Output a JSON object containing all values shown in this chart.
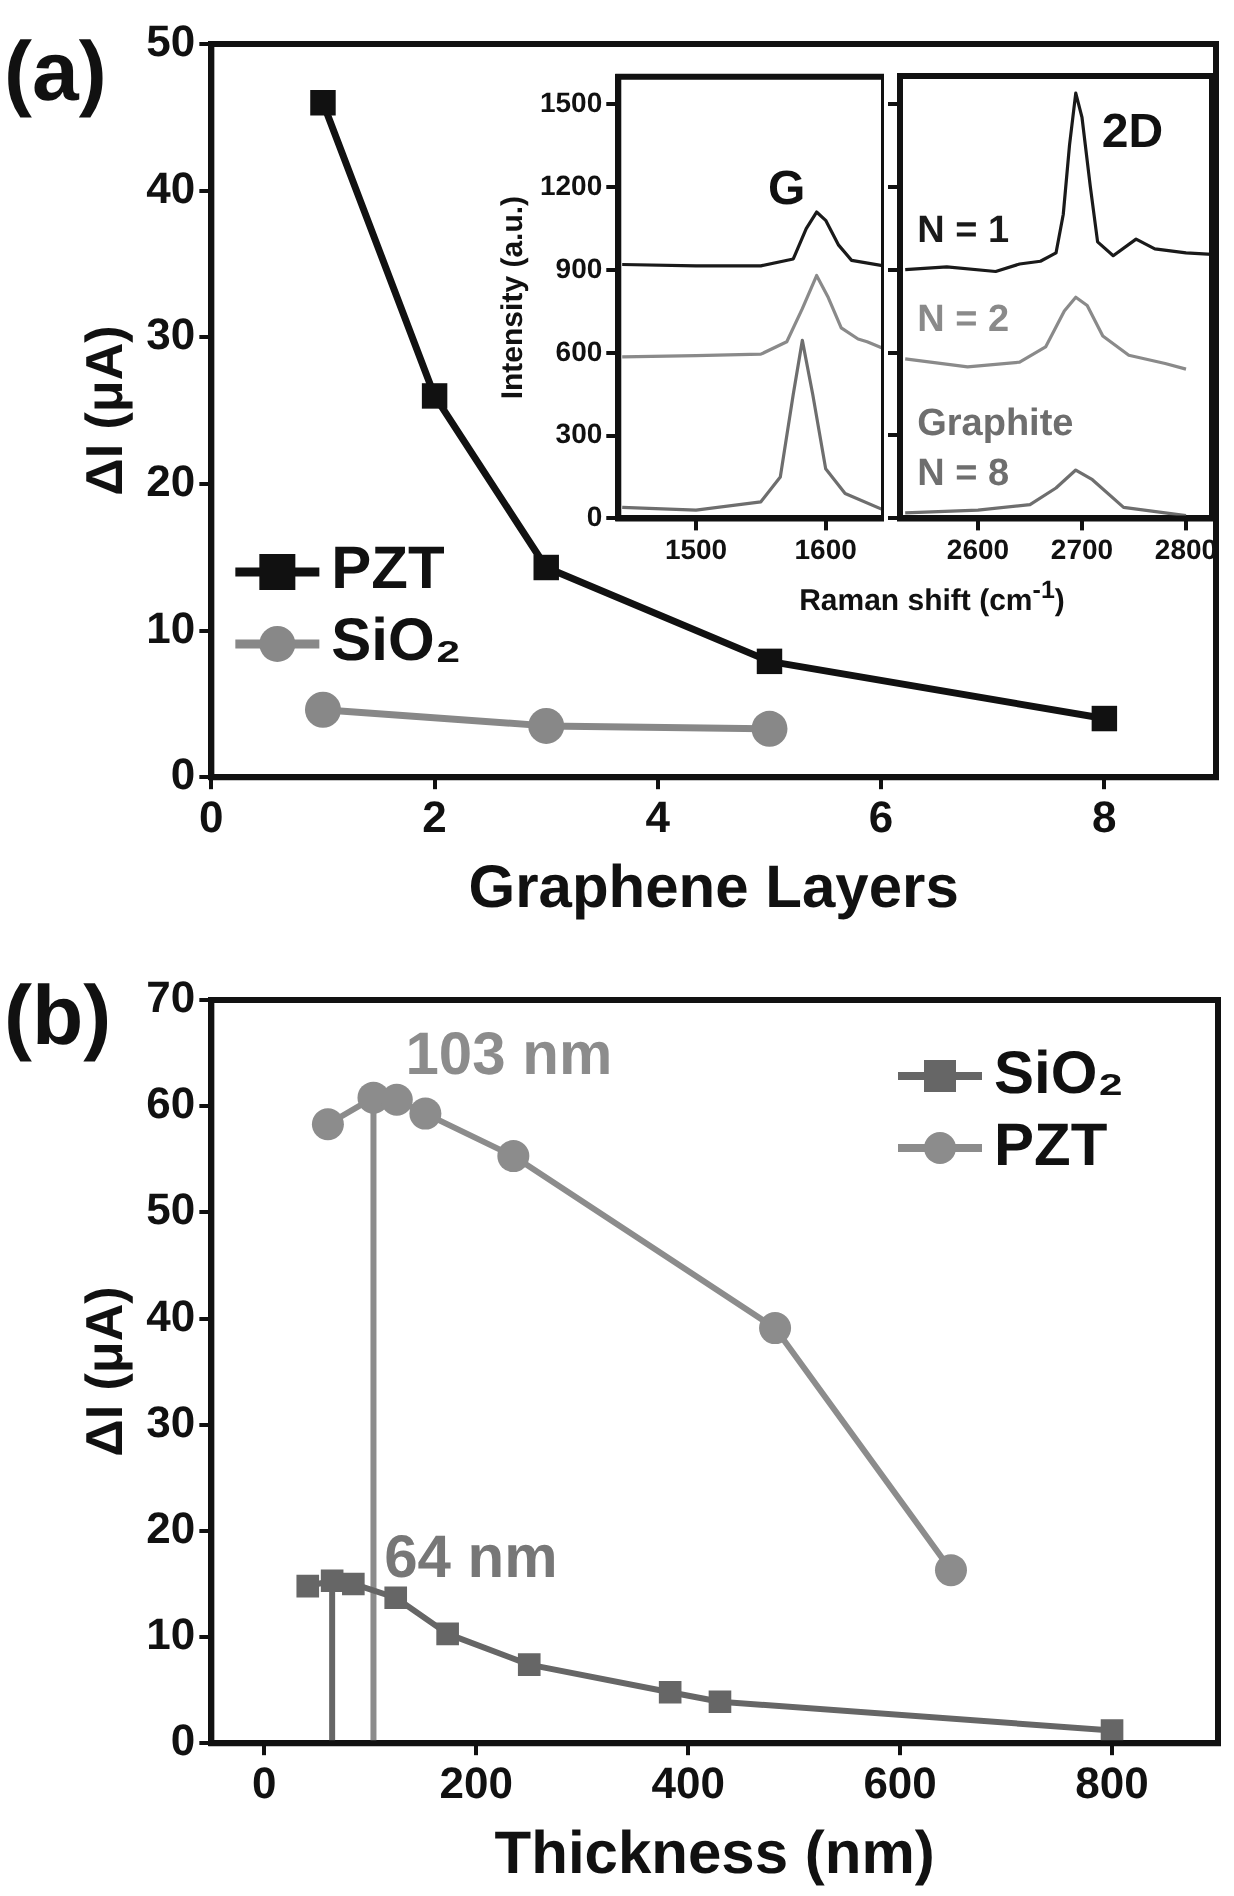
{
  "chart_data": [
    {
      "type": "line",
      "annotations": [
        "(a)"
      ],
      "xlabel": "Graphene Layers",
      "ylabel": "ΔI (μA)",
      "xlim": [
        0,
        9
      ],
      "xticks": [
        0,
        2,
        4,
        6,
        8
      ],
      "ylim": [
        0,
        50
      ],
      "yticks": [
        0,
        10,
        20,
        30,
        40,
        50
      ],
      "legend": "left",
      "series": [
        {
          "name": "PZT",
          "color": "#111111",
          "marker": "square",
          "x": [
            1,
            2,
            3,
            5,
            8
          ],
          "values": [
            46,
            26,
            14.3,
            7.9,
            4
          ]
        },
        {
          "name": "SiO₂",
          "color": "#888888",
          "marker": "circle",
          "x": [
            1,
            3,
            5
          ],
          "values": [
            4.6,
            3.5,
            3.3
          ]
        }
      ]
    },
    {
      "type": "line",
      "ylabel": "Intensity (a.u.)",
      "xlabel": "Raman shift (cm$^{-1}$)",
      "annotations": [
        {
          "text": "G",
          "x": 1593,
          "y": 1110
        }
      ],
      "xlim": [
        1440,
        1645
      ],
      "xticks": [
        1500,
        1600
      ],
      "ylim": [
        0,
        1600
      ],
      "yticks": [
        0,
        300,
        600,
        900,
        1200,
        1500
      ],
      "marker": "none",
      "series": [
        {
          "color": "#1a1a1a",
          "x": [
            1443,
            1500,
            1550,
            1575,
            1585,
            1593,
            1600,
            1610,
            1620,
            1645
          ],
          "values": [
            920,
            915,
            915,
            940,
            1050,
            1110,
            1080,
            990,
            935,
            915
          ]
        },
        {
          "color": "#8a8a8a",
          "x": [
            1443,
            1500,
            1550,
            1570,
            1582,
            1593,
            1602,
            1612,
            1625,
            1632,
            1645
          ],
          "values": [
            585,
            590,
            595,
            640,
            760,
            880,
            800,
            690,
            650,
            640,
            615
          ]
        },
        {
          "color": "#6e6e6e",
          "x": [
            1443,
            1500,
            1550,
            1565,
            1575,
            1582,
            1590,
            1600,
            1615,
            1645
          ],
          "values": [
            40,
            30,
            60,
            150,
            450,
            645,
            450,
            180,
            90,
            30
          ]
        }
      ]
    },
    {
      "type": "line",
      "annotations": [
        {
          "text": "2D",
          "x": 2694,
          "y": 1538
        }
      ],
      "xlim": [
        2525,
        2825
      ],
      "xticks": [
        2600,
        2700,
        2800
      ],
      "ylim": [
        0,
        1600
      ],
      "yticks": [
        0,
        300,
        600,
        900,
        1200,
        1500
      ],
      "tick_labels": "x",
      "marker": "none",
      "series": [
        {
          "name": "N = 1",
          "color": "#1a1a1a",
          "x": [
            2530,
            2570,
            2617,
            2640,
            2660,
            2675,
            2682,
            2688,
            2694,
            2700,
            2708,
            2715,
            2730,
            2752,
            2770,
            2800,
            2825
          ],
          "values": [
            900,
            910,
            893,
            920,
            930,
            960,
            1100,
            1350,
            1538,
            1450,
            1200,
            1000,
            950,
            1010,
            975,
            960,
            955
          ]
        },
        {
          "name": "N = 2",
          "color": "#8a8a8a",
          "x": [
            2530,
            2590,
            2640,
            2665,
            2683,
            2694,
            2705,
            2720,
            2745,
            2780,
            2800
          ],
          "values": [
            577,
            548,
            565,
            620,
            750,
            800,
            770,
            660,
            590,
            560,
            540
          ]
        },
        {
          "name": "Graphite\nN = 8",
          "color": "#6e6e6e",
          "x": [
            2530,
            2600,
            2650,
            2675,
            2694,
            2710,
            2740,
            2800
          ],
          "values": [
            20,
            30,
            50,
            110,
            175,
            140,
            40,
            10
          ]
        }
      ]
    },
    {
      "type": "line",
      "annotations": [
        "(b)",
        {
          "text": "103 nm",
          "x": 103,
          "y": 60.8
        },
        {
          "text": "64 nm",
          "x": 64,
          "y": 15.3
        }
      ],
      "xlabel": "Thickness (nm)",
      "ylabel": "ΔI (μA)",
      "xlim": [
        -50,
        900
      ],
      "xticks": [
        0,
        200,
        400,
        600,
        800
      ],
      "ylim": [
        0,
        70
      ],
      "yticks": [
        0,
        10,
        20,
        30,
        40,
        50,
        60,
        70
      ],
      "legend": "top right",
      "series": [
        {
          "name": "SiO₂",
          "color": "#666666",
          "marker": "square",
          "x": [
            41,
            64,
            84,
            124,
            173,
            250,
            383,
            430,
            800
          ],
          "values": [
            14.8,
            15.3,
            15,
            13.7,
            10.3,
            7.4,
            4.8,
            3.9,
            1.2
          ]
        },
        {
          "name": "PZT",
          "color": "#8c8c8c",
          "marker": "circle",
          "x": [
            60,
            103,
            125,
            152,
            235,
            482,
            648
          ],
          "values": [
            58.3,
            60.8,
            60.6,
            59.3,
            55.3,
            39.1,
            16.3
          ]
        },
        {
          "color": "#666666",
          "marker": "none",
          "x": [
            64,
            64
          ],
          "values": [
            0,
            15.3
          ]
        },
        {
          "color": "#8c8c8c",
          "marker": "none",
          "x": [
            103,
            103
          ],
          "values": [
            0,
            60.8
          ]
        }
      ]
    }
  ]
}
